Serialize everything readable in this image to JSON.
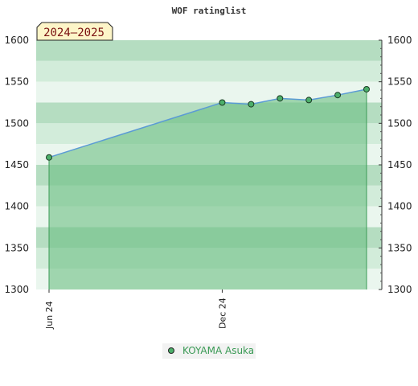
{
  "colors": {
    "band_light": "#eaf6ee",
    "band_mid": "#d2ecda",
    "band_dark": "#b5ddc1",
    "fill": "#6cbf84",
    "fill_opacity": "0.6",
    "line": "#5b9bd5",
    "marker": "#4caf6a",
    "legend_text": "#3a9a55",
    "badge_bg": "#fdf5c8",
    "badge_text": "#7a1010"
  },
  "chart_data": {
    "type": "area",
    "title": "WOF ratinglist",
    "annotation": "2024–2025",
    "ylim": [
      1300,
      1600
    ],
    "y_ticks": [
      "1300",
      "1350",
      "1400",
      "1450",
      "1500",
      "1550",
      "1600"
    ],
    "x_ticks": [
      "Jun 24",
      "Dec 24"
    ],
    "x": [
      0,
      6,
      7,
      8,
      9,
      10,
      11
    ],
    "x_range": [
      0,
      11
    ],
    "series": [
      {
        "name": "KOYAMA Asuka",
        "values": [
          1459,
          1525,
          1523,
          1530,
          1528,
          1534,
          1541
        ]
      }
    ],
    "legend_position": "bottom-center",
    "grid": true
  }
}
